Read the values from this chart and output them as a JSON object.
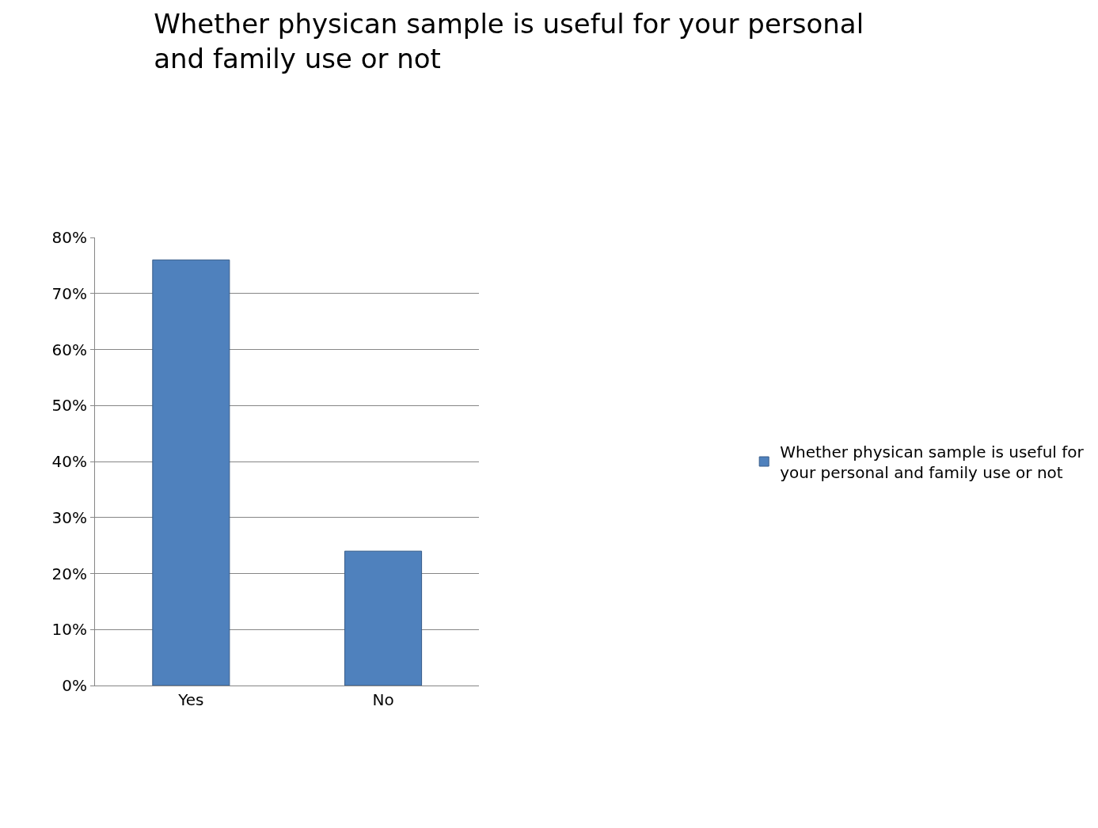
{
  "chart_data": {
    "type": "bar",
    "title": "Whether physican sample is useful for your personal\nand family use or not",
    "categories": [
      "Yes",
      "No"
    ],
    "series": [
      {
        "name": "Whether physican sample is useful for your personal and family use or not",
        "color": "#4f81bd",
        "values": [
          76,
          24
        ]
      }
    ],
    "ylim": [
      0,
      80
    ],
    "yticks": [
      {
        "value": 0,
        "label": "0%"
      },
      {
        "value": 10,
        "label": "10%"
      },
      {
        "value": 20,
        "label": "20%"
      },
      {
        "value": 30,
        "label": "30%"
      },
      {
        "value": 40,
        "label": "40%"
      },
      {
        "value": 50,
        "label": "50%"
      },
      {
        "value": 60,
        "label": "60%"
      },
      {
        "value": 70,
        "label": "70%"
      },
      {
        "value": 80,
        "label": "80%"
      }
    ],
    "grid": "y",
    "legend": "right"
  }
}
